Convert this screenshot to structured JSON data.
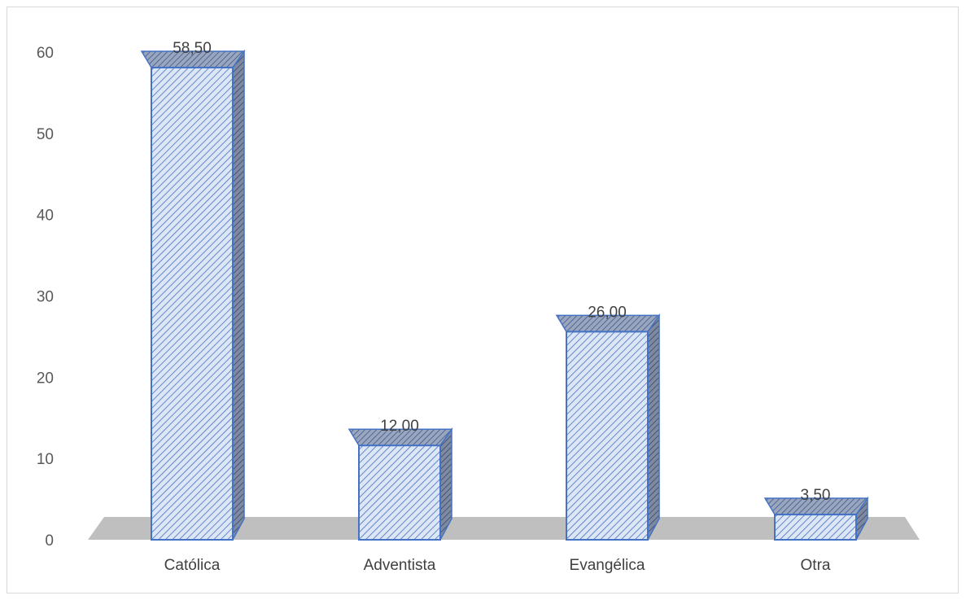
{
  "chart_data": {
    "type": "bar",
    "style": "3d-column",
    "categories": [
      "Católica",
      "Adventista",
      "Evangélica",
      "Otra"
    ],
    "values": [
      58.5,
      12.0,
      26.0,
      3.5
    ],
    "value_labels": [
      "58,50",
      "12,00",
      "26,00",
      "3,50"
    ],
    "y_ticks": [
      "0",
      "10",
      "20",
      "30",
      "40",
      "50",
      "60"
    ],
    "ylim": [
      0,
      60
    ],
    "grid": false,
    "legend": "none",
    "title": "",
    "xlabel": "",
    "ylabel": "",
    "colors": {
      "bar_fill": "#dce6f5",
      "bar_hatch": "#4472c4",
      "bar_edge": "#4472c4",
      "bar_top": "#8e9bb3",
      "floor": "#bfbfbf"
    }
  }
}
